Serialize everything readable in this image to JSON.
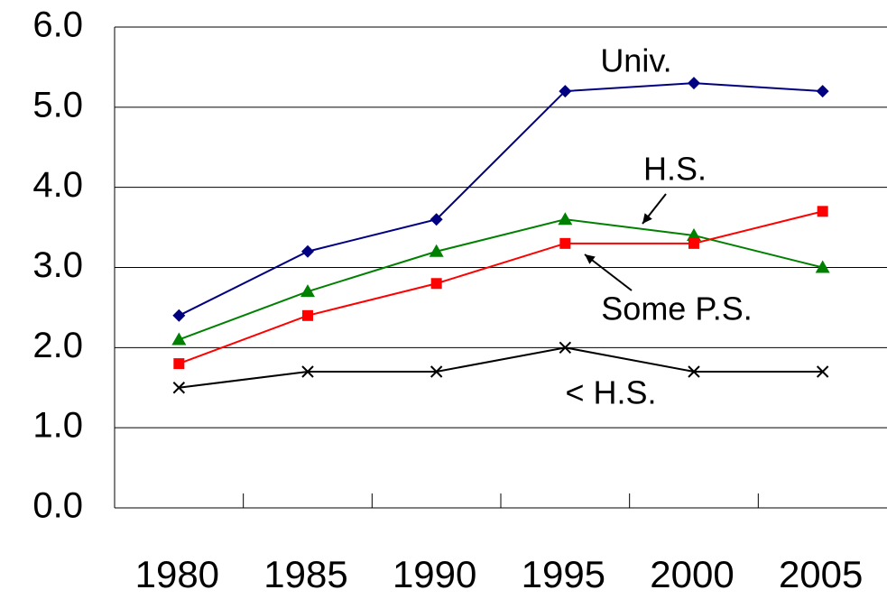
{
  "chart_data": {
    "type": "line",
    "categories": [
      "1980",
      "1985",
      "1990",
      "1995",
      "2000",
      "2005"
    ],
    "series": [
      {
        "name": "Univ.",
        "color": "#000080",
        "marker": "diamond",
        "values": [
          2.4,
          3.2,
          3.6,
          5.2,
          5.3,
          5.2
        ]
      },
      {
        "name": "H.S.",
        "color": "#008000",
        "marker": "triangle",
        "values": [
          2.1,
          2.7,
          3.2,
          3.6,
          3.4,
          3.0
        ]
      },
      {
        "name": "Some P.S.",
        "color": "#ff0000",
        "marker": "square",
        "values": [
          1.8,
          2.4,
          2.8,
          3.3,
          3.3,
          3.7
        ]
      },
      {
        "name": "< H.S.",
        "color": "#000000",
        "marker": "x",
        "values": [
          1.5,
          1.7,
          1.7,
          2.0,
          1.7,
          1.7
        ]
      }
    ],
    "ylim": [
      0,
      6
    ],
    "yticks": [
      {
        "value": 0,
        "label": "0.0"
      },
      {
        "value": 1,
        "label": "1.0"
      },
      {
        "value": 2,
        "label": "2.0"
      },
      {
        "value": 3,
        "label": "3.0"
      },
      {
        "value": 4,
        "label": "4.0"
      },
      {
        "value": 5,
        "label": "5.0"
      },
      {
        "value": 6,
        "label": "6.0"
      }
    ],
    "grid": true
  }
}
